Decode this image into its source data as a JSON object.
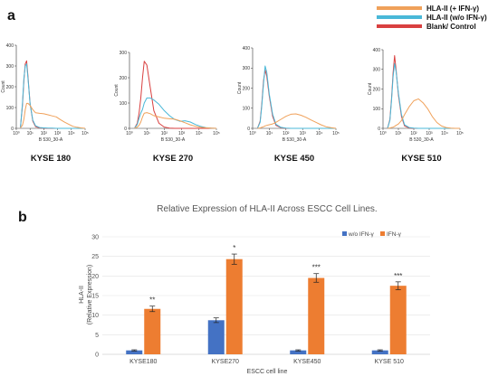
{
  "panels": {
    "a": "a",
    "b": "b"
  },
  "legend": {
    "items": [
      {
        "label": "HLA-II (+ IFN-γ)",
        "color": "#f0a15a"
      },
      {
        "label": "HLA-II (w/o IFN-γ)",
        "color": "#49b8d8"
      },
      {
        "label": "Blank/ Control",
        "color": "#d94040"
      }
    ]
  },
  "chart_data": [
    {
      "type": "line",
      "panel": "a",
      "subtype": "flow-cytometry-histograms",
      "x_axis_label": "B 530_30-A",
      "x_scale": "log",
      "x_tick_labels": [
        "10⁰",
        "10¹",
        "10²",
        "10³",
        "10⁴",
        "10⁵"
      ],
      "series_legend": [
        "HLA-II (+ IFN-γ)",
        "HLA-II (w/o IFN-γ)",
        "Blank/ Control"
      ],
      "histograms": [
        {
          "cell_line": "KYSE 180",
          "y_axis_label": "Count",
          "ylim": [
            0,
            400
          ],
          "y_tick_labels": [
            "0",
            "100",
            "200",
            "300",
            "400"
          ],
          "x_log": [
            0.3,
            0.45,
            0.55,
            0.65,
            0.75,
            0.85,
            1.0,
            1.2,
            1.4,
            1.7,
            2.0,
            2.3,
            2.6,
            2.9,
            3.2,
            3.5,
            3.8,
            4.1,
            4.4,
            4.7,
            5.0
          ],
          "series": [
            {
              "name": "HLA-II (+ IFN-γ)",
              "values": [
                2,
                15,
                45,
                90,
                120,
                120,
                110,
                90,
                75,
                72,
                70,
                65,
                60,
                55,
                42,
                30,
                20,
                10,
                5,
                2,
                0
              ]
            },
            {
              "name": "HLA-II (w/o IFN-γ)",
              "values": [
                5,
                120,
                240,
                300,
                310,
                240,
                120,
                40,
                12,
                4,
                2,
                1,
                1,
                0,
                0,
                0,
                0,
                0,
                0,
                0,
                0
              ]
            },
            {
              "name": "Blank/ Control",
              "values": [
                5,
                110,
                230,
                310,
                325,
                250,
                120,
                35,
                8,
                2,
                1,
                0,
                0,
                0,
                0,
                0,
                0,
                0,
                0,
                0,
                0
              ]
            }
          ]
        },
        {
          "cell_line": "KYSE 270",
          "y_axis_label": "Count",
          "ylim": [
            0,
            300
          ],
          "y_tick_labels": [
            "0",
            "100",
            "200",
            "300"
          ],
          "x_log": [
            0.3,
            0.45,
            0.55,
            0.65,
            0.75,
            0.85,
            1.0,
            1.2,
            1.4,
            1.7,
            2.0,
            2.3,
            2.6,
            2.9,
            3.2,
            3.5,
            3.8,
            4.1,
            4.4,
            4.7,
            5.0
          ],
          "series": [
            {
              "name": "HLA-II (+ IFN-γ)",
              "values": [
                1,
                5,
                12,
                25,
                45,
                60,
                62,
                58,
                50,
                45,
                40,
                38,
                36,
                30,
                22,
                14,
                8,
                4,
                2,
                1,
                0
              ]
            },
            {
              "name": "HLA-II (w/o IFN-γ)",
              "values": [
                2,
                15,
                40,
                60,
                75,
                100,
                120,
                120,
                112,
                95,
                70,
                50,
                35,
                28,
                30,
                25,
                15,
                8,
                3,
                1,
                0
              ]
            },
            {
              "name": "Blank/ Control",
              "values": [
                2,
                20,
                60,
                120,
                200,
                265,
                250,
                160,
                70,
                20,
                5,
                1,
                0,
                0,
                0,
                0,
                0,
                0,
                0,
                0,
                0
              ]
            }
          ]
        },
        {
          "cell_line": "KYSE 450",
          "y_axis_label": "Count",
          "ylim": [
            0,
            400
          ],
          "y_tick_labels": [
            "0",
            "100",
            "200",
            "300",
            "400"
          ],
          "x_log": [
            0.3,
            0.45,
            0.55,
            0.65,
            0.75,
            0.85,
            1.0,
            1.2,
            1.4,
            1.7,
            2.0,
            2.3,
            2.6,
            2.9,
            3.2,
            3.5,
            3.8,
            4.1,
            4.4,
            4.7,
            5.0
          ],
          "series": [
            {
              "name": "HLA-II (+ IFN-γ)",
              "values": [
                0,
                2,
                5,
                8,
                12,
                15,
                18,
                22,
                30,
                45,
                60,
                70,
                72,
                65,
                55,
                42,
                30,
                18,
                8,
                3,
                0
              ]
            },
            {
              "name": "HLA-II (w/o IFN-γ)",
              "values": [
                2,
                30,
                110,
                220,
                310,
                280,
                170,
                70,
                20,
                5,
                1,
                0,
                0,
                0,
                0,
                0,
                0,
                0,
                0,
                0,
                0
              ]
            },
            {
              "name": "Blank/ Control",
              "values": [
                2,
                35,
                120,
                235,
                290,
                260,
                160,
                60,
                15,
                3,
                0,
                0,
                0,
                0,
                0,
                0,
                0,
                0,
                0,
                0,
                0
              ]
            }
          ]
        },
        {
          "cell_line": "KYSE 510",
          "y_axis_label": "Count",
          "ylim": [
            0,
            400
          ],
          "y_tick_labels": [
            "0",
            "100",
            "200",
            "300",
            "400"
          ],
          "x_log": [
            0.3,
            0.45,
            0.55,
            0.65,
            0.75,
            0.85,
            1.0,
            1.2,
            1.4,
            1.7,
            2.0,
            2.3,
            2.6,
            2.9,
            3.2,
            3.5,
            3.8,
            4.1,
            4.4,
            4.7,
            5.0
          ],
          "series": [
            {
              "name": "HLA-II (+ IFN-γ)",
              "values": [
                0,
                2,
                4,
                6,
                10,
                15,
                22,
                40,
                70,
                110,
                140,
                150,
                130,
                100,
                60,
                30,
                12,
                4,
                1,
                0,
                0
              ]
            },
            {
              "name": "HLA-II (w/o IFN-γ)",
              "values": [
                2,
                40,
                140,
                260,
                330,
                290,
                180,
                70,
                18,
                4,
                1,
                0,
                0,
                0,
                0,
                0,
                0,
                0,
                0,
                0,
                0
              ]
            },
            {
              "name": "Blank/ Control",
              "values": [
                2,
                45,
                150,
                280,
                370,
                300,
                170,
                60,
                12,
                2,
                0,
                0,
                0,
                0,
                0,
                0,
                0,
                0,
                0,
                0,
                0
              ]
            }
          ]
        }
      ]
    },
    {
      "type": "bar",
      "panel": "b",
      "title": "Relative Expression of HLA-II Across ESCC Cell Lines.",
      "xlabel": "ESCC cell line",
      "ylabel_lines": [
        "HLA-II",
        "(Relative Expression)"
      ],
      "ylim": [
        0,
        30
      ],
      "y_ticks": [
        0,
        5,
        10,
        15,
        20,
        25,
        30
      ],
      "grid": true,
      "legend_position": "top-right",
      "categories": [
        "KYSE180",
        "KYSE270",
        "KYSE450",
        "KYSE 510"
      ],
      "series": [
        {
          "name": "w/o IFN-γ",
          "color": "#4472c4",
          "values": [
            1.0,
            8.7,
            1.0,
            1.0
          ],
          "errors": [
            0.15,
            0.6,
            0.15,
            0.15
          ]
        },
        {
          "name": "IFN-γ",
          "color": "#ed7d31",
          "values": [
            11.6,
            24.3,
            19.5,
            17.5
          ],
          "errors": [
            0.7,
            1.3,
            1.1,
            1.0
          ]
        }
      ],
      "significance": [
        "**",
        "*",
        "***",
        "***"
      ]
    }
  ]
}
